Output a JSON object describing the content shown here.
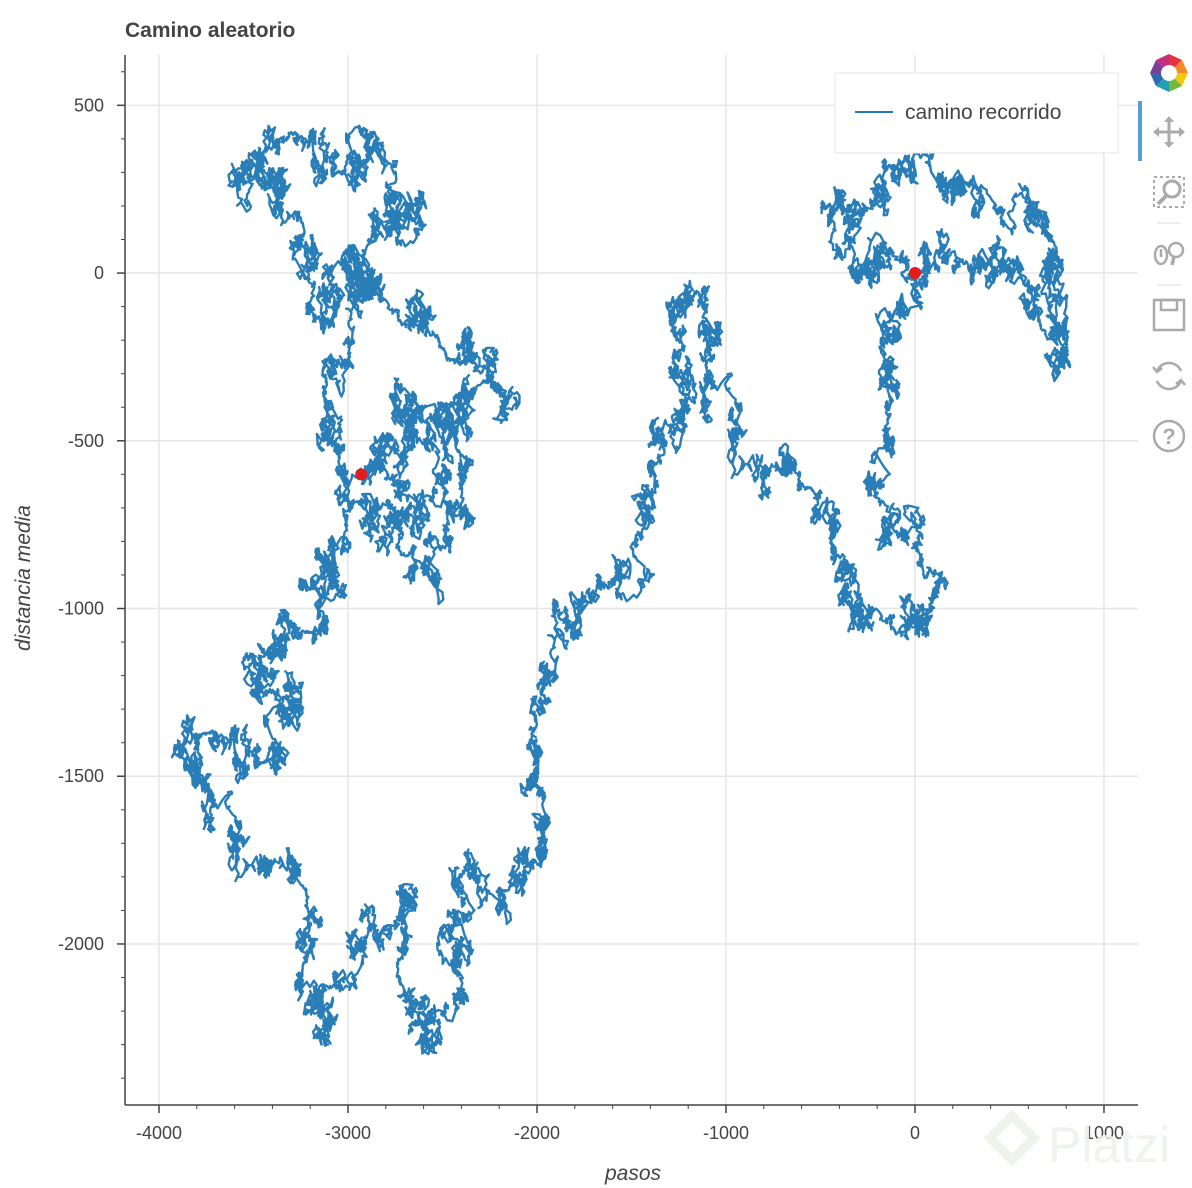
{
  "chart_data": {
    "type": "line",
    "title": "Camino aleatorio",
    "xlabel": "pasos",
    "ylabel": "distancia media",
    "xlim": [
      -4180,
      1180
    ],
    "ylim": [
      -2480,
      650
    ],
    "grid": true,
    "x_ticks": [
      -4000,
      -3000,
      -2000,
      -1000,
      0,
      1000
    ],
    "y_ticks": [
      500,
      0,
      -500,
      -1000,
      -1500,
      -2000
    ],
    "series": [
      {
        "name": "camino recorrido",
        "color": "#1f77b4",
        "anchors": [
          [
            0,
            0
          ],
          [
            230,
            30
          ],
          [
            520,
            40
          ],
          [
            650,
            -120
          ],
          [
            820,
            -280
          ],
          [
            700,
            120
          ],
          [
            450,
            180
          ],
          [
            200,
            250
          ],
          [
            -100,
            320
          ],
          [
            -450,
            180
          ],
          [
            -300,
            -30
          ],
          [
            -150,
            70
          ],
          [
            0,
            0
          ],
          [
            -150,
            -200
          ],
          [
            -130,
            -420
          ],
          [
            -220,
            -640
          ],
          [
            -120,
            -760
          ],
          [
            30,
            -850
          ],
          [
            70,
            -1080
          ],
          [
            -130,
            -1020
          ],
          [
            -310,
            -1050
          ],
          [
            -420,
            -820
          ],
          [
            -550,
            -640
          ],
          [
            -780,
            -600
          ],
          [
            -950,
            -480
          ],
          [
            -1100,
            -300
          ],
          [
            -1090,
            -40
          ],
          [
            -1300,
            -120
          ],
          [
            -1200,
            -400
          ],
          [
            -1400,
            -560
          ],
          [
            -1470,
            -780
          ],
          [
            -1620,
            -940
          ],
          [
            -1820,
            -1050
          ],
          [
            -1960,
            -1260
          ],
          [
            -2030,
            -1500
          ],
          [
            -1950,
            -1730
          ],
          [
            -2160,
            -1840
          ],
          [
            -2370,
            -1760
          ],
          [
            -2440,
            -1930
          ],
          [
            -2370,
            -2170
          ],
          [
            -2610,
            -2240
          ],
          [
            -2740,
            -2060
          ],
          [
            -2690,
            -1850
          ],
          [
            -2900,
            -1980
          ],
          [
            -3070,
            -2120
          ],
          [
            -3140,
            -2300
          ],
          [
            -3240,
            -2070
          ],
          [
            -3210,
            -1860
          ],
          [
            -3420,
            -1760
          ],
          [
            -3620,
            -1720
          ],
          [
            -3710,
            -1570
          ],
          [
            -3880,
            -1440
          ],
          [
            -3740,
            -1370
          ],
          [
            -3450,
            -1460
          ],
          [
            -3250,
            -1270
          ],
          [
            -3430,
            -1250
          ],
          [
            -3560,
            -1160
          ],
          [
            -3190,
            -1070
          ],
          [
            -3010,
            -960
          ],
          [
            -3170,
            -850
          ],
          [
            -3010,
            -730
          ],
          [
            -2780,
            -680
          ],
          [
            -2720,
            -840
          ],
          [
            -2480,
            -810
          ],
          [
            -2340,
            -560
          ],
          [
            -2520,
            -400
          ],
          [
            -2260,
            -290
          ],
          [
            -2160,
            -380
          ],
          [
            -2490,
            -230
          ],
          [
            -2740,
            -110
          ],
          [
            -3010,
            70
          ],
          [
            -3130,
            -180
          ],
          [
            -3240,
            150
          ],
          [
            -3490,
            300
          ],
          [
            -3600,
            260
          ],
          [
            -3280,
            420
          ],
          [
            -3050,
            300
          ],
          [
            -2860,
            420
          ],
          [
            -2800,
            180
          ],
          [
            -2630,
            220
          ],
          [
            -2900,
            80
          ],
          [
            -2990,
            -250
          ],
          [
            -3130,
            -360
          ],
          [
            -3050,
            -600
          ],
          [
            -2930,
            -600
          ],
          [
            -2650,
            -490
          ],
          [
            -2750,
            -330
          ],
          [
            -2610,
            -420
          ],
          [
            -2460,
            -610
          ],
          [
            -2580,
            -710
          ],
          [
            -2820,
            -560
          ],
          [
            -2930,
            -600
          ]
        ]
      }
    ],
    "markers": [
      {
        "label": "start",
        "x": 0,
        "y": 0,
        "color": "#e41a1c"
      },
      {
        "label": "end",
        "x": -2930,
        "y": -600,
        "color": "#e41a1c"
      }
    ],
    "legend": {
      "position": "top-right",
      "entries": [
        "camino recorrido"
      ]
    }
  },
  "toolbar": {
    "tools": [
      "bokeh-logo-icon",
      "pan-icon",
      "box-zoom-icon",
      "wheel-zoom-icon",
      "save-icon",
      "reset-icon",
      "help-icon"
    ],
    "active": "pan-icon"
  },
  "watermark": "Platzi"
}
